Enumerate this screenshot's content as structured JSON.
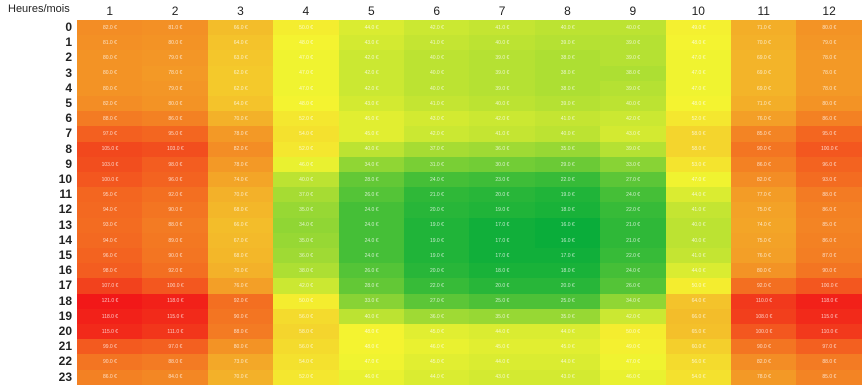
{
  "chart_data": {
    "type": "heatmap",
    "title": "",
    "corner_label": "Heures/mois",
    "columns": [
      "1",
      "2",
      "3",
      "4",
      "5",
      "6",
      "7",
      "8",
      "9",
      "10",
      "11",
      "12"
    ],
    "rows": [
      "0",
      "1",
      "2",
      "3",
      "4",
      "5",
      "6",
      "7",
      "8",
      "9",
      "10",
      "11",
      "12",
      "13",
      "14",
      "15",
      "16",
      "17",
      "18",
      "19",
      "20",
      "21",
      "22",
      "23"
    ],
    "unit": "€",
    "values": [
      [
        82,
        81,
        66,
        50,
        44,
        42,
        41,
        40,
        40,
        49,
        71,
        80
      ],
      [
        81,
        80,
        64,
        48,
        43,
        41,
        40,
        39,
        39,
        48,
        70,
        79
      ],
      [
        80,
        79,
        63,
        47,
        42,
        40,
        39,
        38,
        39,
        47,
        69,
        78
      ],
      [
        80,
        78,
        62,
        47,
        42,
        40,
        39,
        38,
        38,
        47,
        69,
        78
      ],
      [
        80,
        79,
        62,
        47,
        42,
        40,
        39,
        38,
        39,
        47,
        69,
        78
      ],
      [
        82,
        80,
        64,
        48,
        43,
        41,
        40,
        39,
        40,
        48,
        71,
        80
      ],
      [
        88,
        86,
        70,
        52,
        45,
        43,
        42,
        41,
        42,
        52,
        76,
        86
      ],
      [
        97,
        95,
        78,
        54,
        45,
        42,
        41,
        40,
        43,
        58,
        85,
        95
      ],
      [
        105,
        103,
        82,
        52,
        40,
        37,
        36,
        35,
        39,
        58,
        90,
        100
      ],
      [
        103,
        98,
        78,
        46,
        34,
        31,
        30,
        29,
        33,
        53,
        86,
        96
      ],
      [
        100,
        96,
        74,
        40,
        28,
        24,
        23,
        22,
        27,
        47,
        82,
        93
      ],
      [
        95,
        92,
        70,
        37,
        26,
        21,
        20,
        19,
        24,
        44,
        77,
        88
      ],
      [
        94,
        90,
        68,
        35,
        24,
        20,
        19,
        18,
        22,
        41,
        75,
        86
      ],
      [
        93,
        88,
        66,
        34,
        24,
        19,
        17,
        16,
        21,
        40,
        74,
        85
      ],
      [
        94,
        89,
        67,
        35,
        24,
        19,
        17,
        16,
        21,
        40,
        75,
        86
      ],
      [
        96,
        90,
        68,
        36,
        24,
        19,
        17,
        17,
        22,
        41,
        76,
        87
      ],
      [
        98,
        92,
        70,
        38,
        26,
        20,
        18,
        18,
        24,
        44,
        80,
        90
      ],
      [
        107,
        100,
        76,
        42,
        28,
        22,
        20,
        20,
        26,
        50,
        92,
        100
      ],
      [
        121,
        118,
        92,
        50,
        33,
        27,
        25,
        25,
        34,
        64,
        110,
        118
      ],
      [
        118,
        115,
        90,
        56,
        40,
        36,
        35,
        35,
        42,
        66,
        108,
        115
      ],
      [
        115,
        111,
        88,
        58,
        48,
        45,
        44,
        44,
        50,
        65,
        100,
        110
      ],
      [
        99,
        97,
        80,
        56,
        48,
        46,
        45,
        45,
        49,
        60,
        90,
        97
      ],
      [
        90,
        88,
        73,
        54,
        47,
        45,
        44,
        44,
        47,
        56,
        82,
        88
      ],
      [
        86,
        84,
        70,
        52,
        46,
        44,
        43,
        43,
        46,
        54,
        78,
        85
      ]
    ],
    "color_scale": {
      "low": "#0aad3a",
      "mid": "#f4f430",
      "high": "#f21818",
      "min": 16,
      "max": 121
    }
  }
}
